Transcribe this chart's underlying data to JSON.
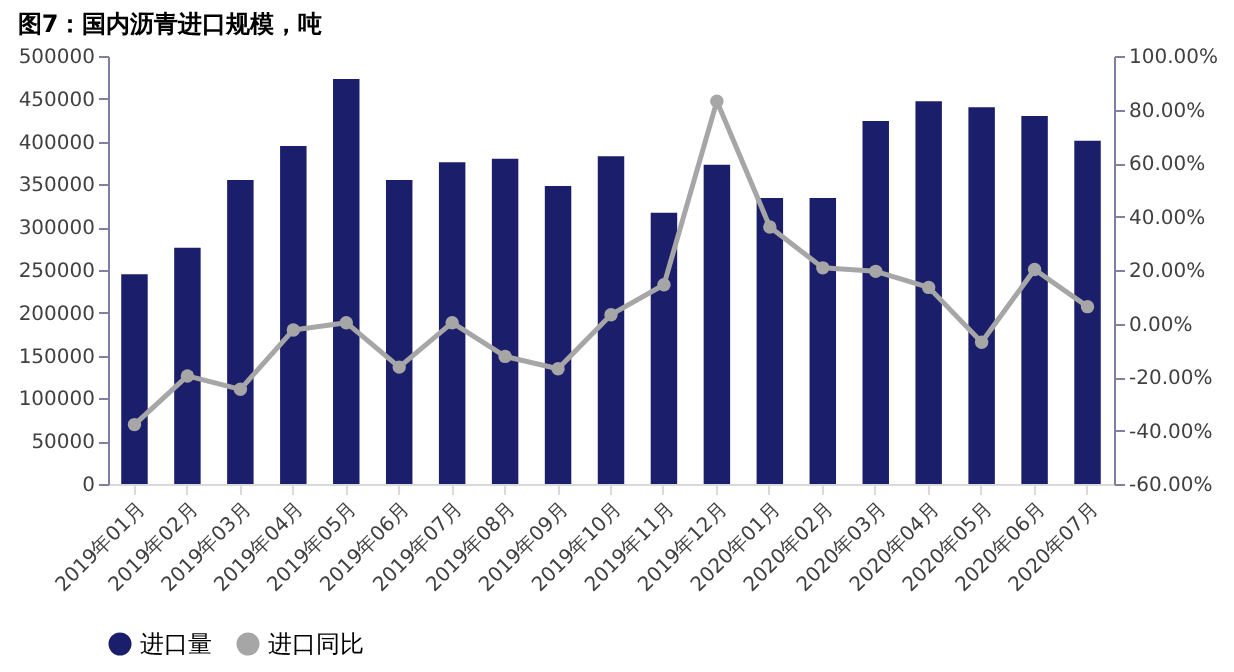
{
  "chart_data": {
    "type": "bar",
    "title": "图7：国内沥青进口规模，吨",
    "categories": [
      "2019年01月",
      "2019年02月",
      "2019年03月",
      "2019年04月",
      "2019年05月",
      "2019年06月",
      "2019年07月",
      "2019年08月",
      "2019年09月",
      "2019年10月",
      "2019年11月",
      "2019年12月",
      "2020年01月",
      "2020年02月",
      "2020年03月",
      "2020年04月",
      "2020年05月",
      "2020年06月",
      "2020年07月"
    ],
    "series": [
      {
        "name": "进口量",
        "color": "#1b1f6b",
        "values": [
          245000,
          276000,
          355000,
          395000,
          473000,
          355000,
          376000,
          380000,
          348000,
          383000,
          317000,
          373000,
          334000,
          334000,
          424000,
          447000,
          440000,
          430000,
          401000
        ]
      },
      {
        "name": "进口同比",
        "type": "line",
        "axis": "y2",
        "color": "#a6a6a6",
        "marker": "circle",
        "values": [
          -37.8,
          -19.6,
          -24.6,
          -2.4,
          0.3,
          -16.3,
          0.3,
          -12.3,
          -16.9,
          3.3,
          14.5,
          83.1,
          36.1,
          20.8,
          19.5,
          13.5,
          -7.0,
          20.2,
          6.3
        ]
      }
    ],
    "ylim": [
      0,
      500000
    ],
    "yticks": [
      0,
      50000,
      100000,
      150000,
      200000,
      250000,
      300000,
      350000,
      400000,
      450000,
      500000
    ],
    "y2lim": [
      -60,
      100
    ],
    "y2ticks": [
      {
        "value": -60,
        "label": "-60.00%"
      },
      {
        "value": -40,
        "label": "-40.00%"
      },
      {
        "value": -20,
        "label": "-20.00%"
      },
      {
        "value": 0,
        "label": "0.00%"
      },
      {
        "value": 20,
        "label": "20.00%"
      },
      {
        "value": 40,
        "label": "40.00%"
      },
      {
        "value": 60,
        "label": "60.00%"
      },
      {
        "value": 80,
        "label": "80.00%"
      },
      {
        "value": 100,
        "label": "100.00%"
      }
    ],
    "grid": false,
    "legend": "bottom"
  }
}
